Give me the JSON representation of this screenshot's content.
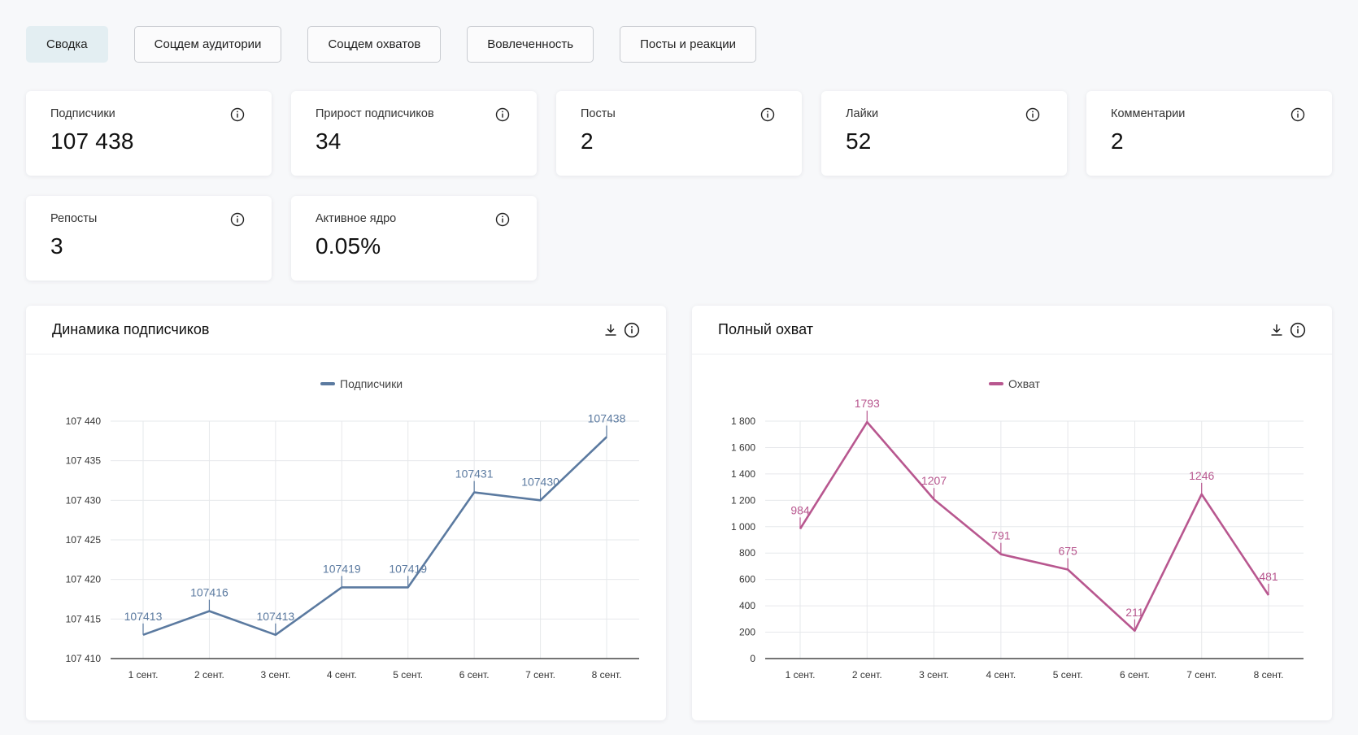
{
  "tabs": [
    {
      "label": "Сводка",
      "active": true
    },
    {
      "label": "Соцдем аудитории",
      "active": false
    },
    {
      "label": "Соцдем охватов",
      "active": false
    },
    {
      "label": "Вовлеченность",
      "active": false
    },
    {
      "label": "Посты и реакции",
      "active": false
    }
  ],
  "metrics": [
    {
      "label": "Подписчики",
      "value": "107 438",
      "icon": "info-icon"
    },
    {
      "label": "Прирост подписчиков",
      "value": "34",
      "icon": "info-icon"
    },
    {
      "label": "Посты",
      "value": "2",
      "icon": "info-icon"
    },
    {
      "label": "Лайки",
      "value": "52",
      "icon": "info-icon"
    },
    {
      "label": "Комментарии",
      "value": "2",
      "icon": "info-icon"
    },
    {
      "label": "Репосты",
      "value": "3",
      "icon": "info-icon"
    },
    {
      "label": "Активное ядро",
      "value": "0.05%",
      "icon": "info-icon"
    }
  ],
  "panels": {
    "subscribers": {
      "title": "Динамика подписчиков",
      "icons": [
        "download-icon",
        "info-icon"
      ]
    },
    "reach": {
      "title": "Полный охват",
      "icons": [
        "download-icon",
        "info-icon"
      ]
    }
  },
  "chart_data": [
    {
      "type": "line",
      "title": "Динамика подписчиков",
      "categories": [
        "1 сент.",
        "2 сент.",
        "3 сент.",
        "4 сент.",
        "5 сент.",
        "6 сент.",
        "7 сент.",
        "8 сент."
      ],
      "series": [
        {
          "name": "Подписчики",
          "color": "#5b7aa0",
          "values": [
            107413,
            107416,
            107413,
            107419,
            107419,
            107431,
            107430,
            107438
          ]
        }
      ],
      "yticks": [
        107410,
        107415,
        107420,
        107425,
        107430,
        107435,
        107440
      ],
      "ytick_labels": [
        "107 410",
        "107 415",
        "107 420",
        "107 425",
        "107 430",
        "107 435",
        "107 440"
      ],
      "ylim": [
        107410,
        107440
      ],
      "grid": true,
      "legend": "top-center"
    },
    {
      "type": "line",
      "title": "Полный охват",
      "categories": [
        "1 сент.",
        "2 сент.",
        "3 сент.",
        "4 сент.",
        "5 сент.",
        "6 сент.",
        "7 сент.",
        "8 сент."
      ],
      "series": [
        {
          "name": "Охват",
          "color": "#b8578f",
          "values": [
            984,
            1793,
            1207,
            791,
            675,
            211,
            1246,
            481
          ]
        }
      ],
      "yticks": [
        0,
        200,
        400,
        600,
        800,
        1000,
        1200,
        1400,
        1600,
        1800
      ],
      "ytick_labels": [
        "0",
        "200",
        "400",
        "600",
        "800",
        "1 000",
        "1 200",
        "1 400",
        "1 600",
        "1 800"
      ],
      "ylim": [
        0,
        1800
      ],
      "grid": true,
      "legend": "top-center"
    }
  ]
}
